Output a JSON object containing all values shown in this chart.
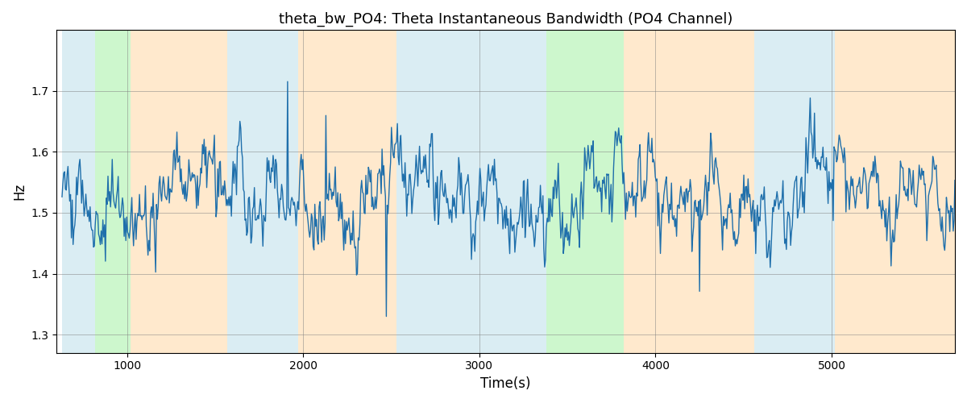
{
  "title": "theta_bw_PO4: Theta Instantaneous Bandwidth (PO4 Channel)",
  "xlabel": "Time(s)",
  "ylabel": "Hz",
  "xlim": [
    600,
    5700
  ],
  "ylim": [
    1.27,
    1.8
  ],
  "yticks": [
    1.3,
    1.4,
    1.5,
    1.6,
    1.7
  ],
  "xticks": [
    1000,
    2000,
    3000,
    4000,
    5000
  ],
  "line_color": "#1f6fab",
  "line_width": 1.0,
  "regions": [
    {
      "xmin": 630,
      "xmax": 820,
      "color": "#add8e6",
      "alpha": 0.45
    },
    {
      "xmin": 820,
      "xmax": 1020,
      "color": "#90ee90",
      "alpha": 0.45
    },
    {
      "xmin": 1020,
      "xmax": 1570,
      "color": "#ffd090",
      "alpha": 0.45
    },
    {
      "xmin": 1570,
      "xmax": 1970,
      "color": "#add8e6",
      "alpha": 0.45
    },
    {
      "xmin": 1970,
      "xmax": 2530,
      "color": "#ffd090",
      "alpha": 0.45
    },
    {
      "xmin": 2530,
      "xmax": 3100,
      "color": "#add8e6",
      "alpha": 0.45
    },
    {
      "xmin": 3100,
      "xmax": 3380,
      "color": "#add8e6",
      "alpha": 0.45
    },
    {
      "xmin": 3380,
      "xmax": 3820,
      "color": "#90ee90",
      "alpha": 0.45
    },
    {
      "xmin": 3820,
      "xmax": 4560,
      "color": "#ffd090",
      "alpha": 0.45
    },
    {
      "xmin": 4560,
      "xmax": 5020,
      "color": "#add8e6",
      "alpha": 0.45
    },
    {
      "xmin": 5020,
      "xmax": 5700,
      "color": "#ffd090",
      "alpha": 0.45
    }
  ],
  "seed": 42,
  "t_start": 630,
  "t_end": 5700,
  "n_points": 1050,
  "signal_mean": 1.525,
  "signal_std": 0.042
}
